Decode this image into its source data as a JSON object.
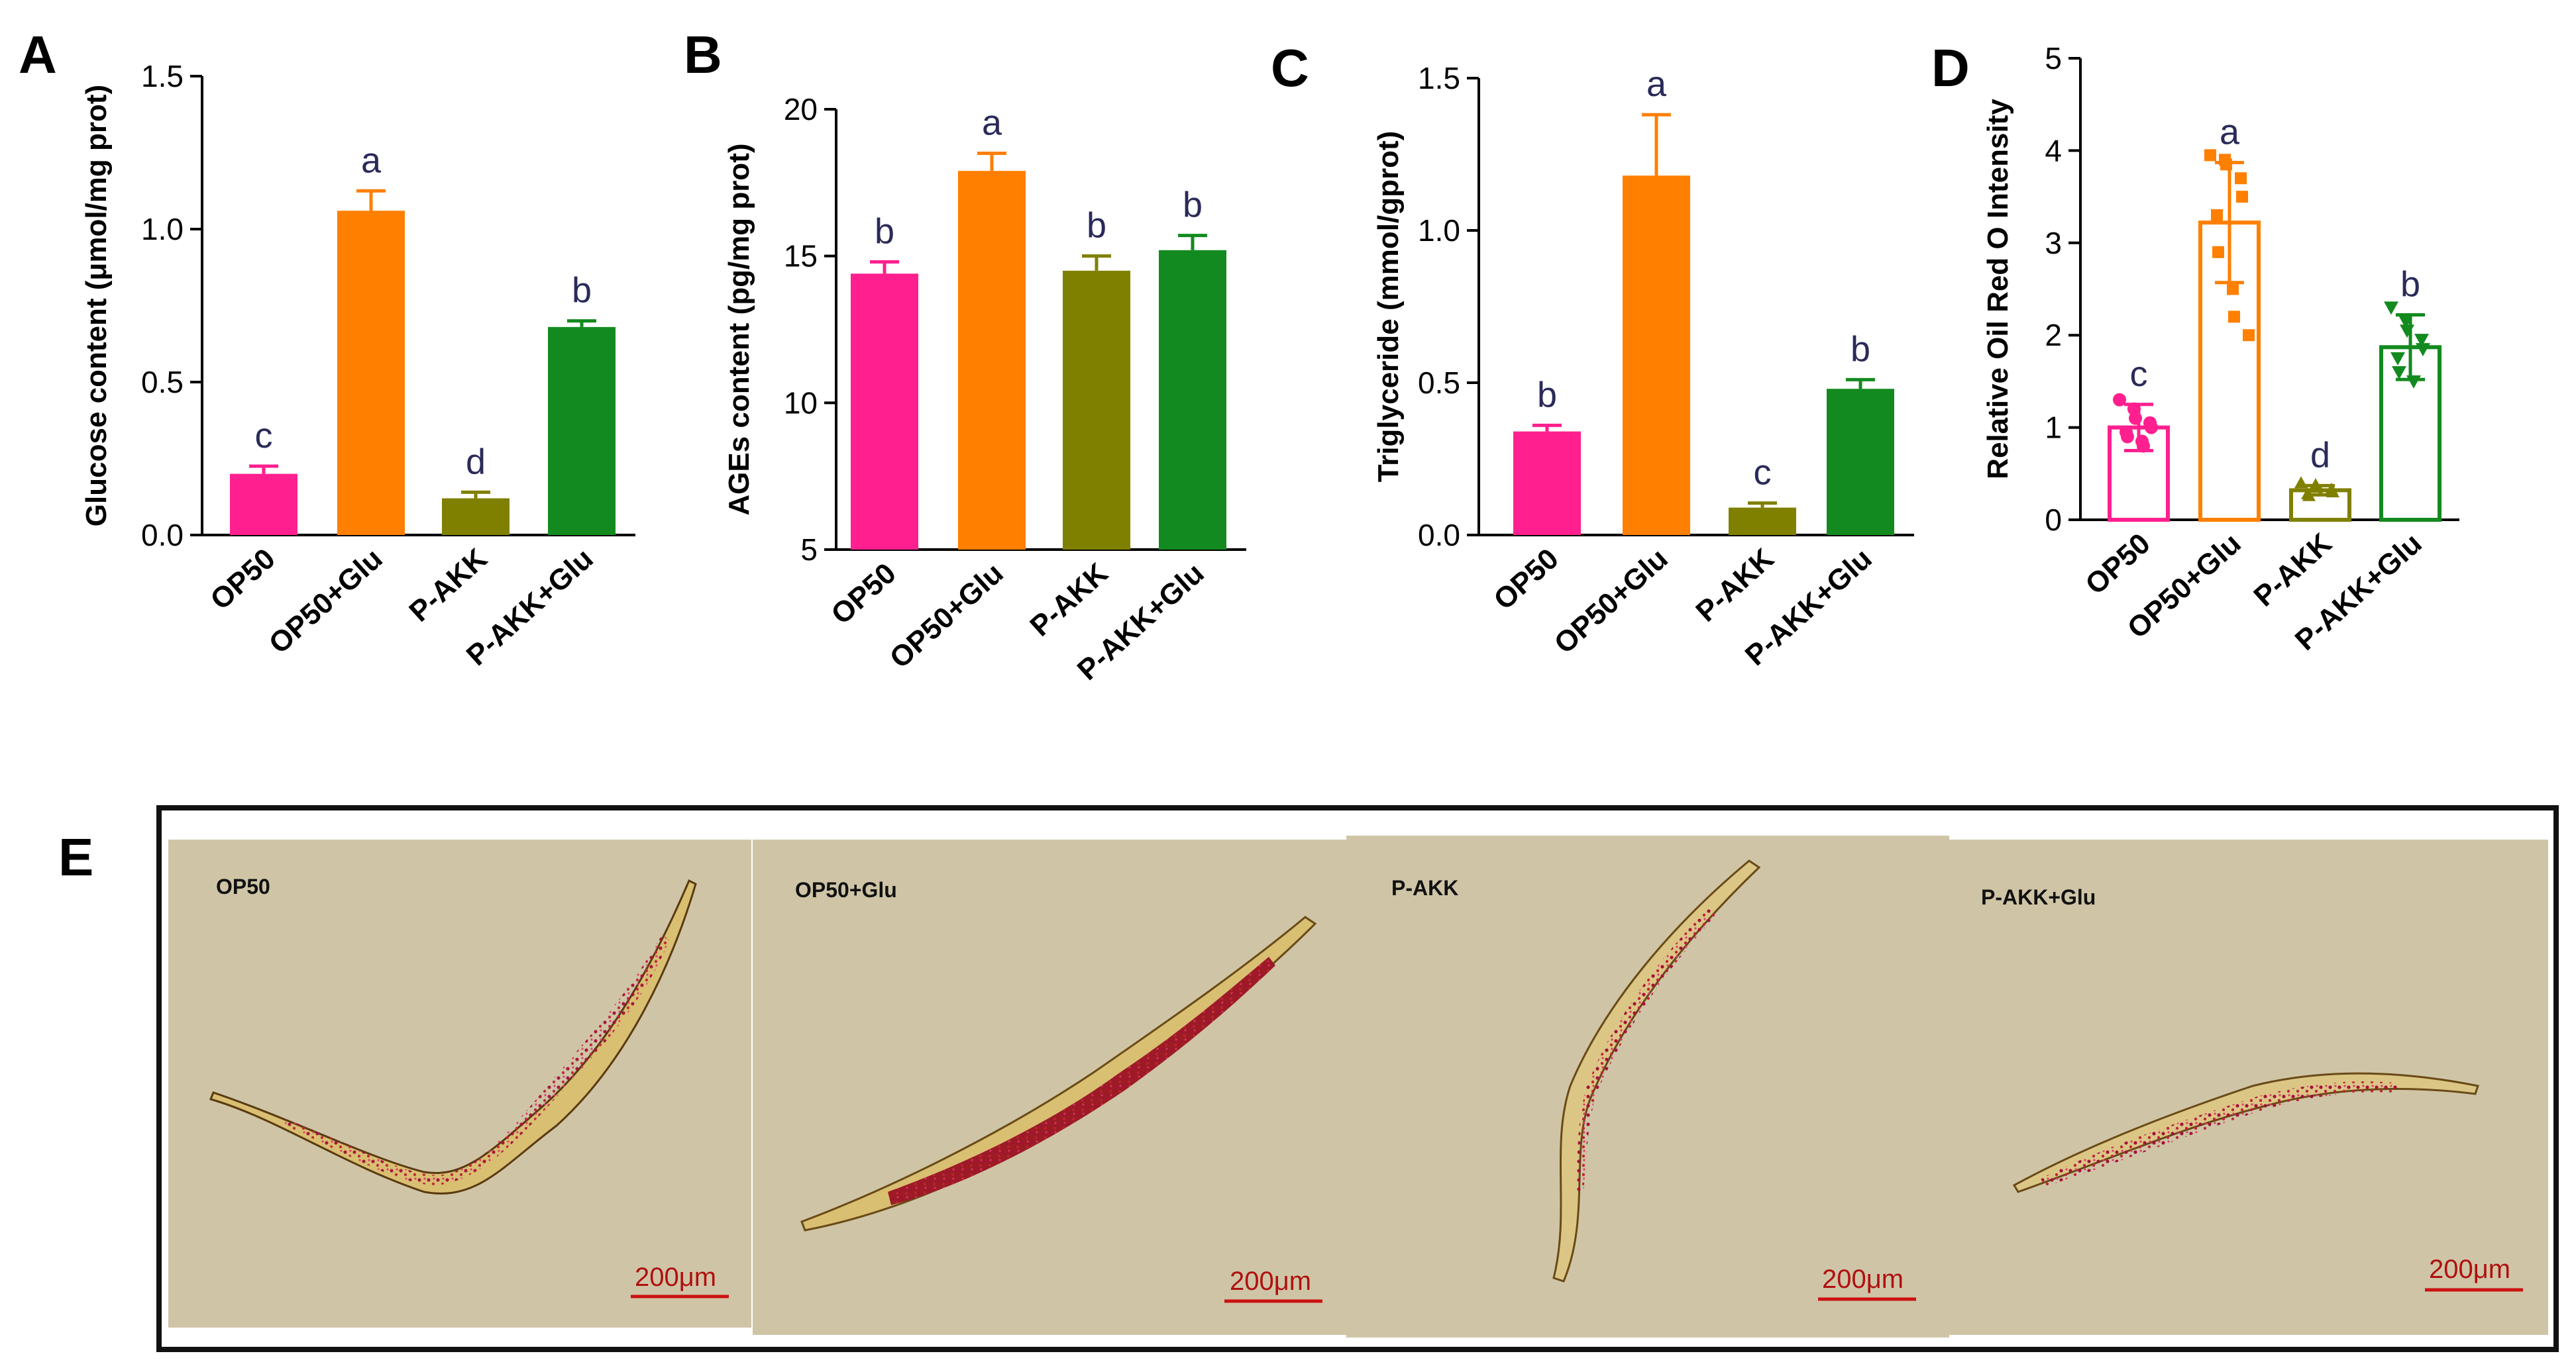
{
  "colors": {
    "OP50": "#ff1f8e",
    "OP50+Glu": "#ff7f00",
    "P-AKK": "#808000",
    "P-AKK+Glu": "#138a1f",
    "micro_bg": "#cfc5a6",
    "worm_body": "#e2cf8e",
    "stain": "#b8202a",
    "scale": "#cc1111"
  },
  "chart_data": [
    {
      "panel": "A",
      "type": "bar",
      "ylabel": "Glucose content (μmol/mg prot)",
      "ylim": [
        0,
        1.5
      ],
      "yticks": [
        "0.0",
        "0.5",
        "1.0",
        "1.5"
      ],
      "categories": [
        "OP50",
        "OP50+Glu",
        "P-AKK",
        "P-AKK+Glu"
      ],
      "values": [
        0.2,
        1.06,
        0.12,
        0.68
      ],
      "errors": [
        0.025,
        0.065,
        0.02,
        0.02
      ],
      "letters": [
        "c",
        "a",
        "d",
        "b"
      ]
    },
    {
      "panel": "B",
      "type": "bar",
      "ylabel": "AGEs content (pg/mg prot)",
      "ylim": [
        5,
        20
      ],
      "yticks": [
        "5",
        "10",
        "15",
        "20"
      ],
      "categories": [
        "OP50",
        "OP50+Glu",
        "P-AKK",
        "P-AKK+Glu"
      ],
      "values": [
        14.4,
        17.9,
        14.5,
        15.2
      ],
      "errors": [
        0.4,
        0.6,
        0.5,
        0.5
      ],
      "letters": [
        "b",
        "a",
        "b",
        "b"
      ]
    },
    {
      "panel": "C",
      "type": "bar",
      "ylabel": "Triglyceride (mmol/gprot)",
      "ylim": [
        0,
        1.5
      ],
      "yticks": [
        "0.0",
        "0.5",
        "1.0",
        "1.5"
      ],
      "categories": [
        "OP50",
        "OP50+Glu",
        "P-AKK",
        "P-AKK+Glu"
      ],
      "values": [
        0.34,
        1.18,
        0.09,
        0.48
      ],
      "errors": [
        0.02,
        0.2,
        0.015,
        0.03
      ],
      "letters": [
        "b",
        "a",
        "c",
        "b"
      ]
    },
    {
      "panel": "D",
      "type": "bar",
      "style": "hollow_with_points",
      "ylabel": "Relative Oil Red O Intensity",
      "ylim": [
        0,
        5
      ],
      "yticks": [
        "0",
        "1",
        "2",
        "3",
        "4",
        "5"
      ],
      "categories": [
        "OP50",
        "OP50+Glu",
        "P-AKK",
        "P-AKK+Glu"
      ],
      "values": [
        1.0,
        3.22,
        0.32,
        1.87
      ],
      "errors": [
        0.25,
        0.65,
        0.05,
        0.35
      ],
      "letters": [
        "c",
        "a",
        "d",
        "b"
      ],
      "points": [
        [
          1.3,
          1.2,
          1.1,
          1.05,
          1.0,
          0.95,
          0.9,
          0.85,
          0.8
        ],
        [
          3.95,
          3.9,
          3.85,
          3.7,
          3.5,
          3.3,
          2.9,
          2.5,
          2.2,
          2.0
        ],
        [
          0.4,
          0.38,
          0.35,
          0.33,
          0.3,
          0.28,
          0.26
        ],
        [
          2.3,
          2.15,
          2.05,
          1.95,
          1.85,
          1.75,
          1.6,
          1.5
        ]
      ]
    }
  ],
  "panel_E": {
    "letter": "E",
    "images": [
      {
        "label": "OP50",
        "scale_bar": "200μm"
      },
      {
        "label": "OP50+Glu",
        "scale_bar": "200μm"
      },
      {
        "label": "P-AKK",
        "scale_bar": "200μm"
      },
      {
        "label": "P-AKK+Glu",
        "scale_bar": "200μm"
      }
    ]
  }
}
